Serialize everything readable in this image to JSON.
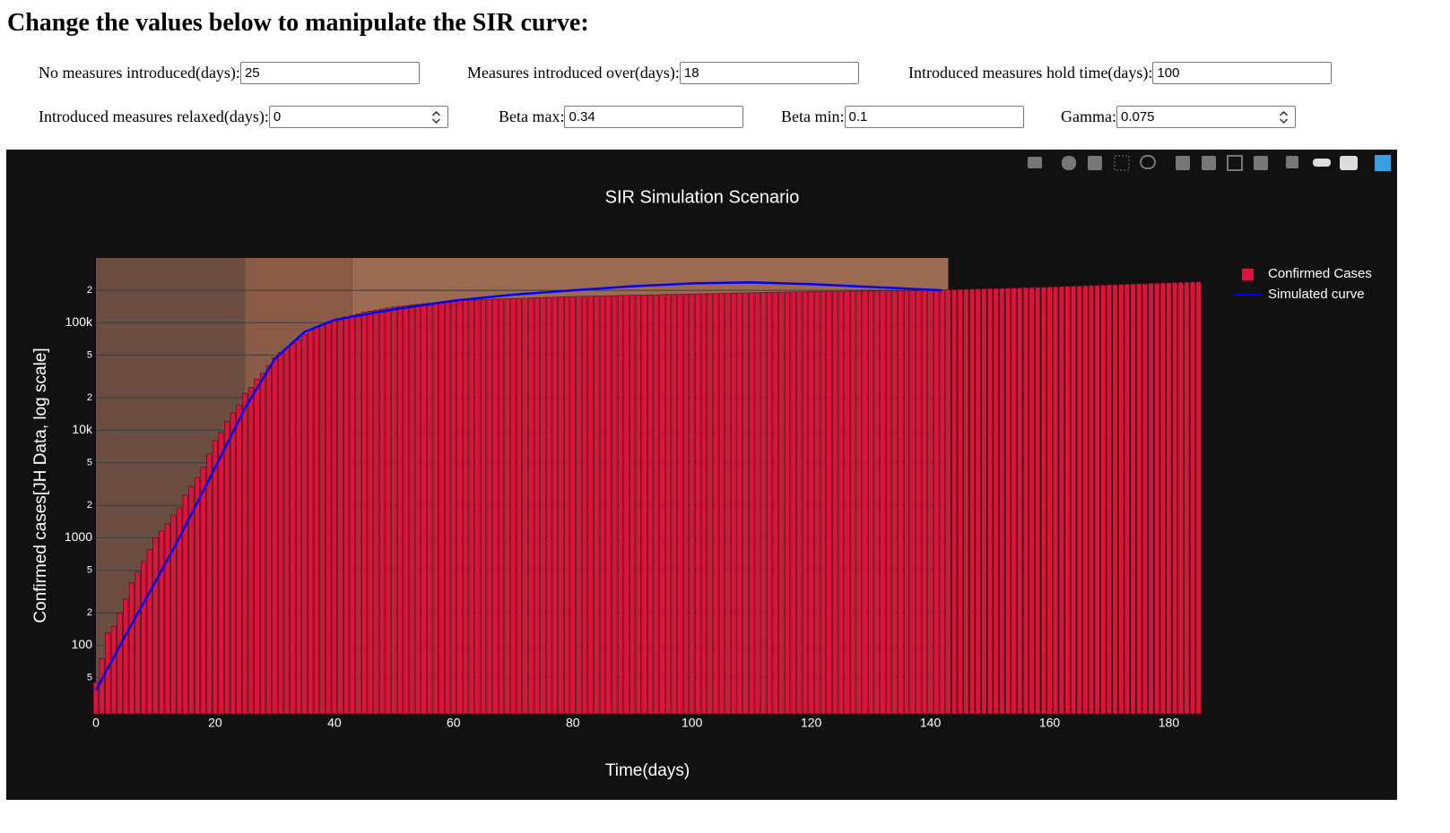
{
  "header": {
    "title": "Change the values below to manipulate the SIR curve:"
  },
  "form": {
    "fields": [
      {
        "label": "No measures introduced(days):",
        "value": "25"
      },
      {
        "label": "Measures introduced over(days):",
        "value": "18"
      },
      {
        "label": "Introduced measures hold time(days):",
        "value": "100"
      },
      {
        "label": "Introduced measures relaxed(days):",
        "value": "0"
      },
      {
        "label": "Beta max:",
        "value": "0.34"
      },
      {
        "label": "Beta min:",
        "value": "0.1"
      },
      {
        "label": "Gamma:",
        "value": "0.075"
      }
    ]
  },
  "chart_data": {
    "type": "bar",
    "title": "SIR Simulation Scenario",
    "x_label": "Time(days)",
    "y_label": "Confirmed cases[JH Data, log scale]",
    "log_y": true,
    "grid": true,
    "legend_position": "right",
    "xlim": [
      0,
      185.5
    ],
    "xticks": [
      0,
      20,
      40,
      60,
      80,
      100,
      120,
      140,
      160,
      180
    ],
    "ylim": [
      23,
      400000
    ],
    "yticks": [
      {
        "value": 50,
        "label": "5"
      },
      100,
      {
        "value": 200,
        "label": "2"
      },
      {
        "value": 500,
        "label": "5"
      },
      1000,
      {
        "value": 2000,
        "label": "2"
      },
      {
        "value": 5000,
        "label": "5"
      },
      {
        "value": 10000,
        "label": "10k"
      },
      {
        "value": 20000,
        "label": "2"
      },
      {
        "value": 50000,
        "label": "5"
      },
      {
        "value": 100000,
        "label": "100k"
      },
      {
        "value": 200000,
        "label": "2"
      }
    ],
    "shapes": [
      {
        "x0": 0,
        "x1": 25,
        "color": "#6b4d41"
      },
      {
        "x0": 25,
        "x1": 43,
        "color": "#8a5b46"
      },
      {
        "x0": 43,
        "x1": 143,
        "color": "#9c6a50"
      }
    ],
    "series": [
      {
        "name": "Confirmed Cases",
        "type": "bar",
        "color": "#dc143c",
        "x": [
          0,
          1,
          2,
          3,
          4,
          5,
          6,
          7,
          8,
          9,
          10,
          11,
          12,
          13,
          14,
          15,
          16,
          17,
          18,
          19,
          20,
          21,
          22,
          23,
          24,
          25,
          26,
          27,
          28,
          29,
          30,
          31,
          32,
          33,
          34,
          35,
          36,
          37,
          38,
          39,
          40,
          41,
          42,
          43,
          44,
          45,
          46,
          47,
          48,
          49,
          50,
          51,
          52,
          53,
          54,
          55,
          56,
          57,
          58,
          59,
          60,
          61,
          62,
          63,
          64,
          65,
          66,
          67,
          68,
          69,
          70,
          71,
          72,
          73,
          74,
          75,
          76,
          77,
          78,
          79,
          80,
          81,
          82,
          83,
          84,
          85,
          86,
          87,
          88,
          89,
          90,
          91,
          92,
          93,
          94,
          95,
          96,
          97,
          98,
          99,
          100,
          101,
          102,
          103,
          104,
          105,
          106,
          107,
          108,
          109,
          110,
          111,
          112,
          113,
          114,
          115,
          116,
          117,
          118,
          119,
          120,
          121,
          122,
          123,
          124,
          125,
          126,
          127,
          128,
          129,
          130,
          131,
          132,
          133,
          134,
          135,
          136,
          137,
          138,
          139,
          140,
          141,
          142,
          143,
          144,
          145,
          146,
          147,
          148,
          149,
          150,
          151,
          152,
          153,
          154,
          155,
          156,
          157,
          158,
          159,
          160,
          161,
          162,
          163,
          164,
          165,
          166,
          167,
          168,
          169,
          170,
          171,
          172,
          173,
          174,
          175,
          176,
          177,
          178,
          179,
          180,
          181,
          182,
          183,
          184,
          185
        ],
        "values": [
          45,
          75,
          130,
          150,
          200,
          270,
          380,
          480,
          600,
          780,
          1000,
          1150,
          1350,
          1600,
          1900,
          2500,
          3000,
          3600,
          4500,
          6000,
          8000,
          9500,
          12000,
          14500,
          17000,
          22000,
          25000,
          30000,
          34000,
          40000,
          47000,
          53000,
          58000,
          64000,
          70000,
          78000,
          85000,
          90000,
          96000,
          101000,
          105000,
          109000,
          113000,
          117000,
          121000,
          125000,
          128000,
          131000,
          134000,
          137000,
          140000,
          142000,
          144000,
          146000,
          148000,
          150000,
          152000,
          154000,
          156000,
          158000,
          160000,
          161000,
          162000,
          162500,
          163000,
          164000,
          165000,
          165500,
          166000,
          167000,
          168000,
          168500,
          169000,
          170000,
          171000,
          171500,
          172000,
          173000,
          174000,
          174500,
          175000,
          175500,
          176000,
          176500,
          177000,
          177500,
          178000,
          178500,
          179000,
          179500,
          180000,
          180500,
          181000,
          181500,
          182000,
          182500,
          183000,
          183500,
          184000,
          184500,
          185000,
          185500,
          186000,
          186500,
          187000,
          187500,
          188000,
          188500,
          189000,
          189500,
          190000,
          190500,
          191000,
          191500,
          192000,
          192500,
          193000,
          193500,
          194000,
          194500,
          195000,
          195250,
          195500,
          195750,
          196000,
          196250,
          196500,
          196750,
          197000,
          197250,
          197500,
          197750,
          198000,
          198250,
          198500,
          198750,
          199000,
          199250,
          199500,
          199750,
          200000,
          200750,
          201500,
          202250,
          203000,
          203750,
          204500,
          205250,
          206000,
          206750,
          207500,
          208250,
          209000,
          209750,
          210500,
          211250,
          212000,
          212750,
          213500,
          214250,
          215000,
          216000,
          217000,
          218000,
          219000,
          220000,
          221000,
          222000,
          223000,
          224000,
          225000,
          226000,
          227000,
          228000,
          229000,
          230000,
          231000,
          232000,
          233000,
          234000,
          235000,
          236000,
          237000,
          238000,
          239000,
          240000
        ]
      },
      {
        "name": "Simulated curve",
        "type": "line",
        "color": "#0000ff",
        "x": [
          0,
          5,
          10,
          14,
          20,
          25,
          30,
          35,
          40,
          50,
          60,
          70,
          80,
          90,
          100,
          110,
          120,
          130,
          142
        ],
        "values": [
          38,
          125,
          390,
          1000,
          4500,
          16000,
          46000,
          82000,
          106000,
          133000,
          160000,
          182000,
          200000,
          218000,
          232000,
          237000,
          228000,
          215000,
          200000
        ]
      }
    ]
  }
}
